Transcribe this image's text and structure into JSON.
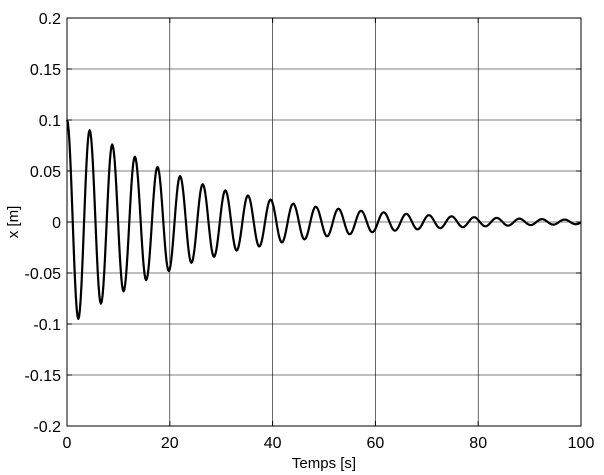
{
  "chart_data": {
    "type": "line",
    "title": "",
    "xlabel": "Temps [s]",
    "ylabel": "x [m]",
    "xlim": [
      0,
      100
    ],
    "ylim": [
      -0.2,
      0.2
    ],
    "xticks": [
      0,
      20,
      40,
      60,
      80,
      100
    ],
    "xtick_labels": [
      "0",
      "20",
      "40",
      "60",
      "80",
      "100"
    ],
    "yticks": [
      0.2,
      0.15,
      0.1,
      0.05,
      0,
      -0.05,
      -0.1,
      -0.15,
      -0.2
    ],
    "ytick_labels": [
      "0.2",
      "0.15",
      "0.1",
      "0.05",
      "0",
      "-0.05",
      "-0.1",
      "-0.15",
      "-0.2"
    ],
    "grid": true,
    "line_color": "#000000",
    "series": [
      {
        "x": [
          0,
          2.2,
          4.4,
          6.6,
          8.8,
          11.0,
          13.2,
          15.4,
          17.6,
          19.8,
          22.0,
          24.2,
          26.4,
          28.6,
          30.8,
          33.0,
          35.2,
          37.4,
          39.6,
          41.8,
          44.0,
          46.2,
          48.4,
          50.6,
          52.8,
          55.0,
          57.2,
          59.4,
          61.6,
          63.8,
          66.0,
          68.2,
          70.4,
          72.6,
          74.8,
          77.0,
          79.2,
          81.4,
          83.6,
          85.8,
          88.0,
          90.2,
          92.4,
          94.6,
          96.8,
          99.0
        ],
        "values": [
          0.1,
          -0.095,
          0.09,
          -0.08,
          0.076,
          -0.068,
          0.064,
          -0.057,
          0.054,
          -0.048,
          0.045,
          -0.04,
          0.037,
          -0.034,
          0.031,
          -0.028,
          0.026,
          -0.024,
          0.022,
          -0.02,
          0.018,
          -0.017,
          0.015,
          -0.014,
          0.013,
          -0.012,
          0.011,
          -0.01,
          0.0095,
          -0.0085,
          0.008,
          -0.0072,
          0.0067,
          -0.006,
          0.0056,
          -0.005,
          0.0047,
          -0.0042,
          0.004,
          -0.0036,
          0.0033,
          -0.003,
          0.0028,
          -0.0026,
          0.0024,
          -0.0022
        ]
      }
    ]
  }
}
